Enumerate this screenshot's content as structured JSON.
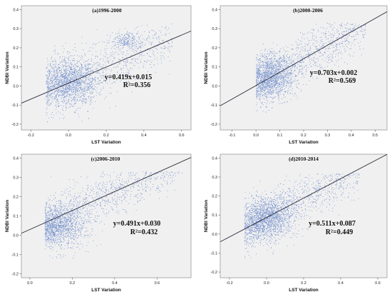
{
  "colors": {
    "plot_bg": "#f0f0f0",
    "point": "#1f4fb4",
    "fit_line": "#2a2a3a",
    "frame": "#9a9a9a"
  },
  "chart_data": [
    {
      "type": "scatter",
      "title": "(a)1996-2000",
      "xlabel": "LST Variation",
      "ylabel": "NDBI Variation",
      "xlim": [
        -0.25,
        0.65
      ],
      "ylim": [
        -0.23,
        0.42
      ],
      "xticks": [
        "-0.2",
        "0.0",
        "0.2",
        "0.4",
        "0.6"
      ],
      "xtick_values": [
        -0.2,
        0.0,
        0.2,
        0.4,
        0.6
      ],
      "yticks": [
        "-0.2",
        "-0.1",
        "0.0",
        "0.1",
        "0.2",
        "0.3",
        "0.4"
      ],
      "ytick_values": [
        -0.2,
        -0.1,
        0.0,
        0.1,
        0.2,
        0.3,
        0.4
      ],
      "fit": {
        "slope": 0.419,
        "intercept": 0.015,
        "r2": 0.356
      },
      "equation": "y=0.419x+0.015",
      "r2_label": "R²=0.356",
      "point_cloud": {
        "x_range": [
          -0.12,
          0.55
        ],
        "y_range": [
          -0.2,
          0.33
        ],
        "dense_center": [
          0.0,
          0.02
        ],
        "secondary_cluster": [
          0.3,
          0.24
        ]
      }
    },
    {
      "type": "scatter",
      "title": "(b)2000-2006",
      "xlabel": "LST Variation",
      "ylabel": "NDBI Variation",
      "xlim": [
        -0.15,
        0.55
      ],
      "ylim": [
        -0.23,
        0.42
      ],
      "xticks": [
        "-0.1",
        "0.0",
        "0.1",
        "0.2",
        "0.3",
        "0.4",
        "0.5"
      ],
      "xtick_values": [
        -0.1,
        0.0,
        0.1,
        0.2,
        0.3,
        0.4,
        0.5
      ],
      "yticks": [
        "-0.2",
        "-0.1",
        "0.0",
        "0.1",
        "0.2",
        "0.3",
        "0.4"
      ],
      "ytick_values": [
        -0.2,
        -0.1,
        0.0,
        0.1,
        0.2,
        0.3,
        0.4
      ],
      "fit": {
        "slope": 0.703,
        "intercept": 0.002,
        "r2": 0.569
      },
      "equation": "y=0.703x+0.002",
      "r2_label": "R²=0.569",
      "point_cloud": {
        "x_range": [
          0.0,
          0.46
        ],
        "y_range": [
          -0.15,
          0.33
        ],
        "dense_center": [
          0.05,
          0.05
        ]
      }
    },
    {
      "type": "scatter",
      "title": "(c)2006-2010",
      "xlabel": "LST Variation",
      "ylabel": "NDBI Variation",
      "xlim": [
        -0.04,
        0.76
      ],
      "ylim": [
        -0.22,
        0.42
      ],
      "xticks": [
        "0.0",
        "0.2",
        "0.4",
        "0.6"
      ],
      "xtick_values": [
        0.0,
        0.2,
        0.4,
        0.6
      ],
      "yticks": [
        "-0.2",
        "-0.1",
        "0.0",
        "0.1",
        "0.2",
        "0.3",
        "0.4"
      ],
      "ytick_values": [
        -0.2,
        -0.1,
        0.0,
        0.1,
        0.2,
        0.3,
        0.4
      ],
      "fit": {
        "slope": 0.491,
        "intercept": 0.03,
        "r2": 0.432
      },
      "equation": "y=0.491x+0.030",
      "r2_label": "R²=0.432",
      "point_cloud": {
        "x_range": [
          0.07,
          0.72
        ],
        "y_range": [
          -0.12,
          0.33
        ],
        "dense_center": [
          0.12,
          0.04
        ]
      }
    },
    {
      "type": "scatter",
      "title": "(d)2010-2014",
      "xlabel": "LST Variation",
      "ylabel": "NDBI Variation",
      "xlim": [
        -0.25,
        0.65
      ],
      "ylim": [
        -0.23,
        0.42
      ],
      "xticks": [
        "-0.2",
        "0.0",
        "0.2",
        "0.4",
        "0.6"
      ],
      "xtick_values": [
        -0.2,
        0.0,
        0.2,
        0.4,
        0.6
      ],
      "yticks": [
        "-0.2",
        "-0.1",
        "0.0",
        "0.1",
        "0.2",
        "0.3",
        "0.4"
      ],
      "ytick_values": [
        -0.2,
        -0.1,
        0.0,
        0.1,
        0.2,
        0.3,
        0.4
      ],
      "fit": {
        "slope": 0.511,
        "intercept": 0.087,
        "r2": 0.449
      },
      "equation": "y=0.511x+0.087",
      "r2_label": "R²=0.449",
      "point_cloud": {
        "x_range": [
          -0.12,
          0.5
        ],
        "y_range": [
          -0.15,
          0.32
        ],
        "dense_center": [
          0.0,
          0.08
        ]
      }
    }
  ]
}
